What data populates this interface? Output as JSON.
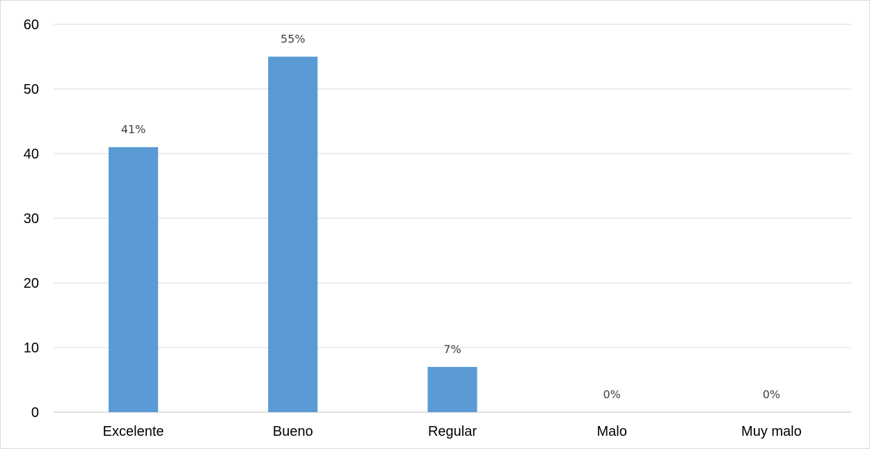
{
  "chart_data": {
    "type": "bar",
    "title": "",
    "xlabel": "",
    "ylabel": "",
    "categories": [
      "Excelente",
      "Bueno",
      "Regular",
      "Malo",
      "Muy malo"
    ],
    "values": [
      41,
      55,
      7,
      0,
      0
    ],
    "data_labels": [
      "41%",
      "55%",
      "7%",
      "0%",
      "0%"
    ],
    "ylim": [
      0,
      60
    ],
    "y_ticks": [
      0,
      10,
      20,
      30,
      40,
      50,
      60
    ],
    "grid": true,
    "legend": "none",
    "colors": {
      "bar": "#5B9BD5",
      "grid": "#D9D9D9",
      "label": "#404040"
    }
  }
}
